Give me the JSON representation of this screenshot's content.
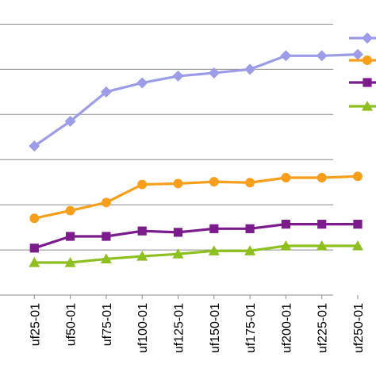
{
  "chart_data": {
    "type": "line",
    "categories": [
      "uf25-01",
      "uf50-01",
      "uf75-01",
      "uf100-01",
      "uf125-01",
      "uf150-01",
      "uf175-01",
      "uf200-01",
      "uf225-01",
      "uf250-01"
    ],
    "ylim": [
      0,
      6.5
    ],
    "grid": true,
    "legend": "right",
    "series": [
      {
        "marker": "diamond",
        "color": "#9c9ce8",
        "values": [
          3.3,
          3.85,
          4.5,
          4.7,
          4.85,
          4.92,
          5.0,
          5.3,
          5.3,
          5.33
        ]
      },
      {
        "marker": "circle",
        "color": "#f79e1b",
        "values": [
          1.7,
          1.87,
          2.05,
          2.45,
          2.47,
          2.51,
          2.49,
          2.6,
          2.6,
          2.63
        ]
      },
      {
        "marker": "square",
        "color": "#7b1b8c",
        "values": [
          1.04,
          1.3,
          1.3,
          1.42,
          1.39,
          1.47,
          1.47,
          1.57,
          1.57,
          1.57
        ]
      },
      {
        "marker": "triangle",
        "color": "#8dbf1e",
        "values": [
          0.72,
          0.72,
          0.8,
          0.86,
          0.91,
          0.98,
          0.98,
          1.09,
          1.09,
          1.09
        ]
      }
    ]
  }
}
